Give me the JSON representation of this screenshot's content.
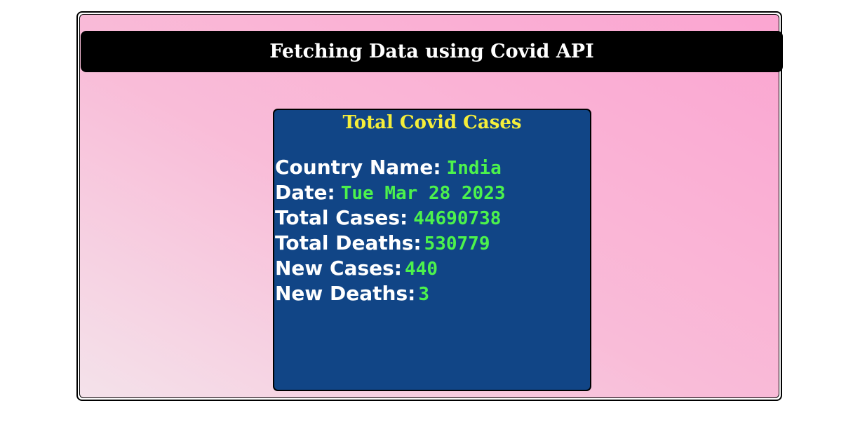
{
  "header": {
    "title": "Fetching Data using Covid API"
  },
  "card": {
    "title": "Total Covid Cases",
    "rows": [
      {
        "label": "Country Name:",
        "value": "India",
        "sep": " "
      },
      {
        "label": "Date:",
        "value": "Tue Mar 28 2023",
        "sep": " "
      },
      {
        "label": "Total Cases:",
        "value": "44690738",
        "sep": " "
      },
      {
        "label": "Total Deaths:",
        "value": "530779",
        "sep": ""
      },
      {
        "label": "New Cases:",
        "value": "440",
        "sep": ""
      },
      {
        "label": "New Deaths:",
        "value": "3",
        "sep": ""
      }
    ]
  },
  "colors": {
    "card_background": "#114586",
    "title_yellow": "#f5ee3a",
    "value_green": "#4cf24c"
  }
}
